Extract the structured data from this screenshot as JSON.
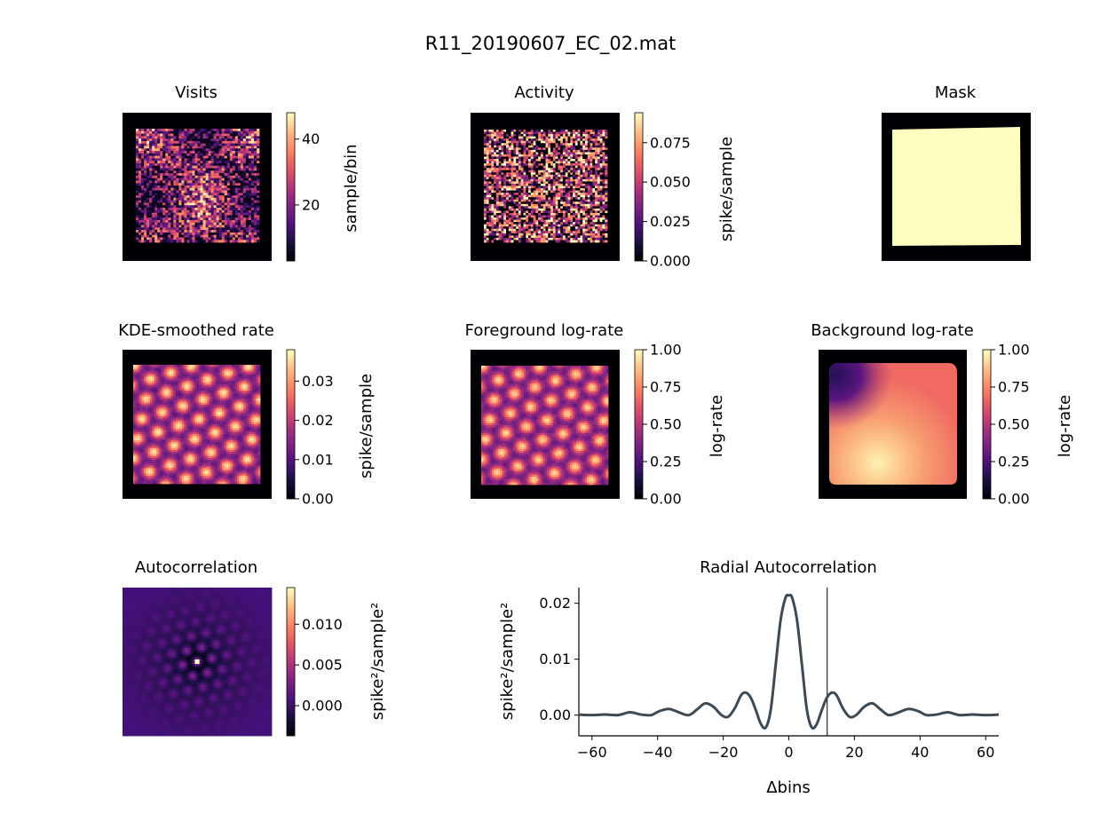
{
  "figure": {
    "suptitle": "R11_20190607_EC_02.mat"
  },
  "panels": {
    "visits": {
      "title": "Visits",
      "colorbar_label": "sample/bin",
      "colorbar_ticks": [
        "20",
        "40"
      ],
      "colorbar_range": [
        3,
        48
      ],
      "colormap": "magma"
    },
    "activity": {
      "title": "Activity",
      "colorbar_label": "spike/sample",
      "colorbar_ticks": [
        "0.000",
        "0.025",
        "0.050",
        "0.075"
      ],
      "colorbar_range": [
        0,
        0.094
      ],
      "colormap": "magma"
    },
    "mask": {
      "title": "Mask"
    },
    "kde": {
      "title": "KDE-smoothed rate",
      "colorbar_label": "spike/sample",
      "colorbar_ticks": [
        "0.00",
        "0.01",
        "0.02",
        "0.03"
      ],
      "colorbar_range": [
        0,
        0.038
      ],
      "colormap": "magma"
    },
    "foreground": {
      "title": "Foreground log-rate",
      "colorbar_label": "log-rate",
      "colorbar_ticks": [
        "0.00",
        "0.25",
        "0.50",
        "0.75",
        "1.00"
      ],
      "colorbar_range": [
        0,
        1
      ],
      "colormap": "magma"
    },
    "background": {
      "title": "Background log-rate",
      "colorbar_label": "log-rate",
      "colorbar_ticks": [
        "0.00",
        "0.25",
        "0.50",
        "0.75",
        "1.00"
      ],
      "colorbar_range": [
        0,
        1
      ],
      "colormap": "magma"
    },
    "autocorr": {
      "title": "Autocorrelation",
      "colorbar_label": "spike²/sample²",
      "colorbar_ticks": [
        "0.000",
        "0.005",
        "0.010"
      ],
      "colorbar_range": [
        -0.0037,
        0.0145
      ],
      "colormap": "magma"
    }
  },
  "chart_data": {
    "type": "line",
    "title": "Radial Autocorrelation",
    "xlabel": "Δbins",
    "ylabel": "spike²/sample²",
    "xlim": [
      -64,
      64
    ],
    "ylim": [
      -0.0037,
      0.0228
    ],
    "xticks": [
      "−60",
      "−40",
      "−20",
      "0",
      "20",
      "40",
      "60"
    ],
    "yticks": [
      "0.00",
      "0.01",
      "0.02"
    ],
    "vline_x": 11.7,
    "line_color": "#3d4a55",
    "series": [
      {
        "x": [
          -64,
          -60,
          -56,
          -52,
          -48.5,
          -45,
          -42,
          -39.5,
          -36.5,
          -33.5,
          -30.5,
          -28,
          -25.5,
          -23,
          -20.5,
          -18.5,
          -16.5,
          -14.5,
          -13,
          -11.5,
          -10,
          -8.5,
          -7,
          -5.5,
          -4,
          -2.5,
          -1,
          0,
          1,
          2.5,
          4,
          5.5,
          7,
          8.5,
          10,
          11.5,
          13,
          14.5,
          16.5,
          18.5,
          20.5,
          23,
          25.5,
          28,
          30.5,
          33.5,
          36.5,
          39.5,
          42,
          45,
          48.5,
          52,
          56,
          60,
          64
        ],
        "y": [
          0.0001,
          0.0,
          0.0001,
          0.0,
          0.0005,
          0.0001,
          0.0,
          0.0007,
          0.0011,
          0.0005,
          0.0,
          0.001,
          0.0021,
          0.0015,
          0.0,
          -0.0003,
          0.0012,
          0.0036,
          0.004,
          0.003,
          0.0008,
          -0.0016,
          -0.0022,
          0.001,
          0.009,
          0.017,
          0.021,
          0.0214,
          0.021,
          0.017,
          0.009,
          0.001,
          -0.0022,
          -0.0016,
          0.0008,
          0.003,
          0.004,
          0.0036,
          0.0012,
          -0.0003,
          0.0,
          0.0015,
          0.0021,
          0.001,
          0.0,
          0.0005,
          0.0011,
          0.0007,
          0.0,
          0.0001,
          0.0005,
          0.0,
          0.0001,
          0.0,
          0.0001
        ]
      }
    ]
  }
}
